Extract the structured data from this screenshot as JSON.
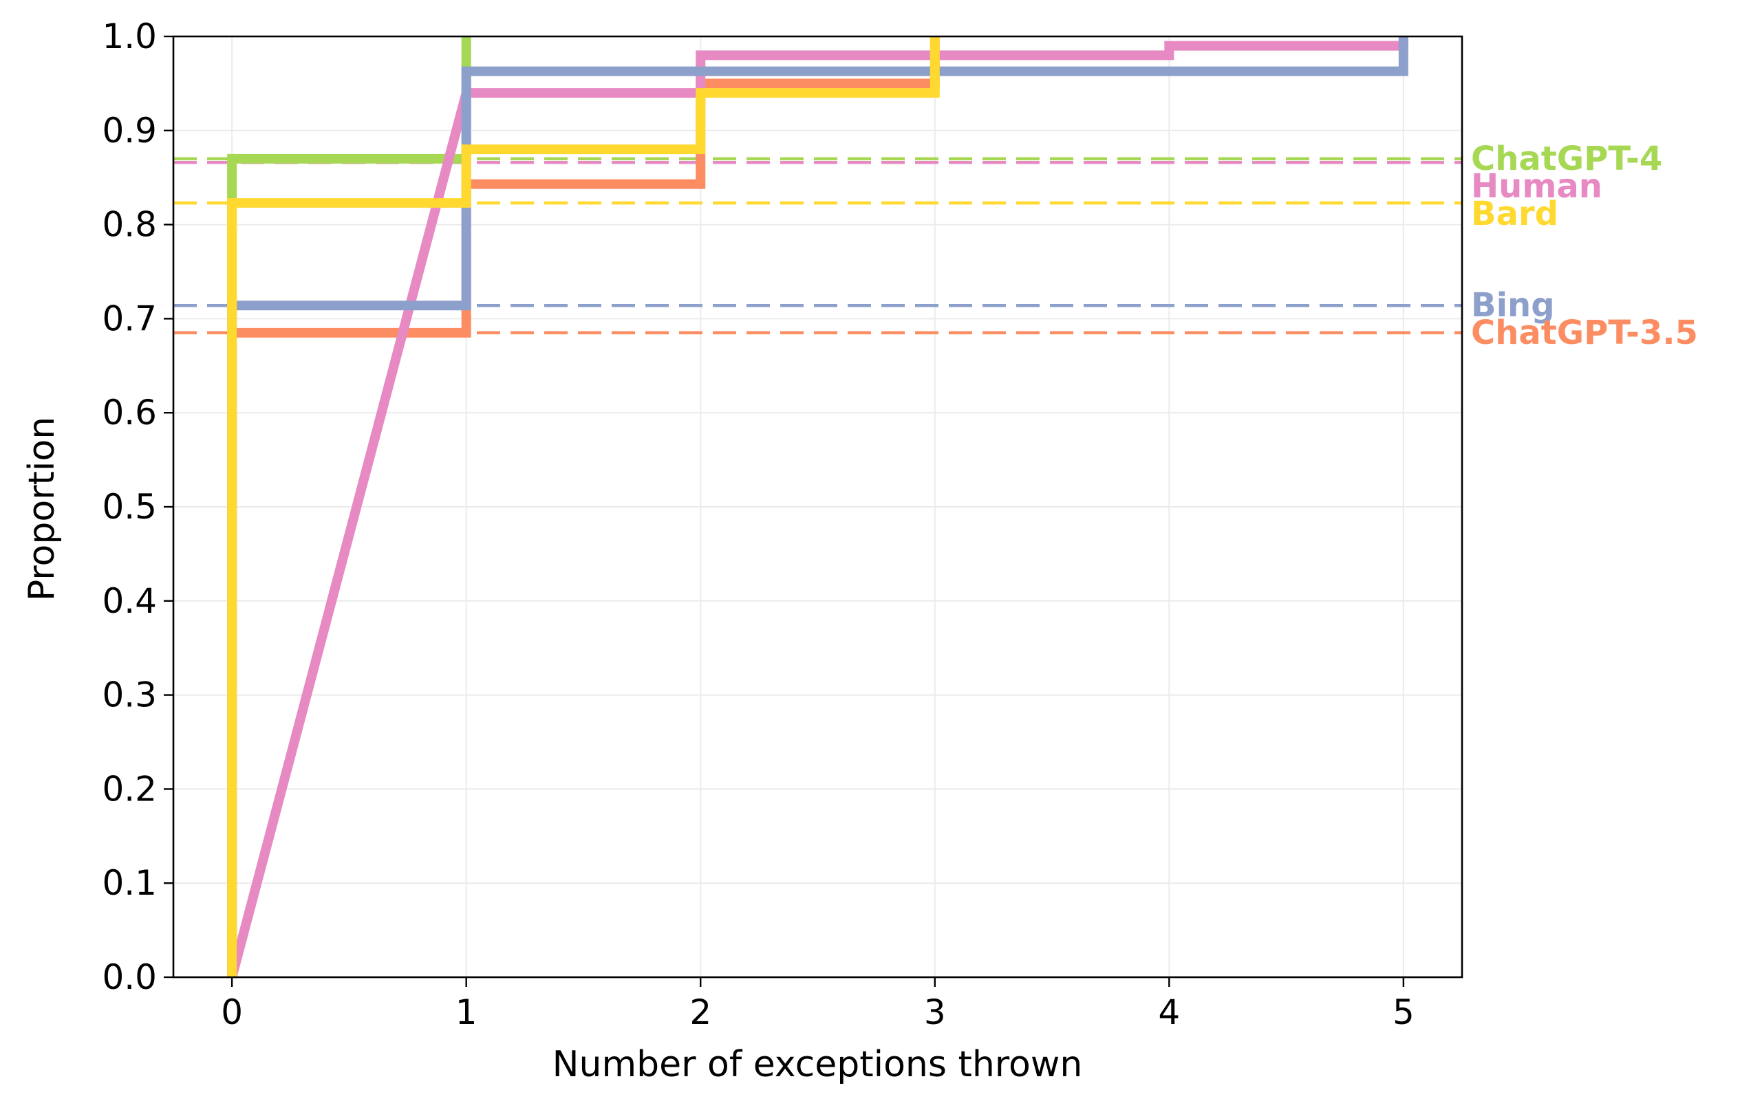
{
  "chart_data": {
    "type": "line",
    "subtype": "step-ecdf",
    "title": "",
    "xlabel": "Number of exceptions thrown",
    "ylabel": "Proportion",
    "xlim": [
      -0.25,
      5.25
    ],
    "ylim": [
      0.0,
      1.0
    ],
    "xticks": [
      "0",
      "1",
      "2",
      "3",
      "4",
      "5"
    ],
    "yticks": [
      "0.0",
      "0.1",
      "0.2",
      "0.3",
      "0.4",
      "0.5",
      "0.6",
      "0.7",
      "0.8",
      "0.9",
      "1.0"
    ],
    "grid": true,
    "legend": "labels at right edge",
    "series": [
      {
        "name": "ChatGPT-4",
        "color": "#a6d854",
        "steps": [
          [
            0,
            0.87
          ],
          [
            1,
            1.0
          ]
        ],
        "reference_line": 0.87
      },
      {
        "name": "Human",
        "color": "#e78ac3",
        "steps": [
          [
            1,
            0.94
          ],
          [
            2,
            0.98
          ],
          [
            4,
            0.99
          ],
          [
            5,
            1.0
          ]
        ],
        "reference_line": 0.866
      },
      {
        "name": "Bard",
        "color": "#ffd92f",
        "steps": [
          [
            0,
            0.823
          ],
          [
            1,
            0.88
          ],
          [
            2,
            0.94
          ],
          [
            3,
            1.0
          ]
        ],
        "reference_line": 0.823
      },
      {
        "name": "Bing",
        "color": "#8da0cb",
        "steps": [
          [
            0,
            0.714
          ],
          [
            1,
            0.963
          ],
          [
            5,
            1.0
          ]
        ],
        "reference_line": 0.714
      },
      {
        "name": "ChatGPT-3.5",
        "color": "#fc8d62",
        "steps": [
          [
            0,
            0.685
          ],
          [
            1,
            0.843
          ],
          [
            2,
            0.95
          ],
          [
            3,
            1.0
          ]
        ],
        "reference_line": 0.685
      }
    ],
    "draw_order": [
      "ChatGPT-3.5",
      "ChatGPT-4",
      "Human",
      "Bing",
      "Bard"
    ]
  }
}
